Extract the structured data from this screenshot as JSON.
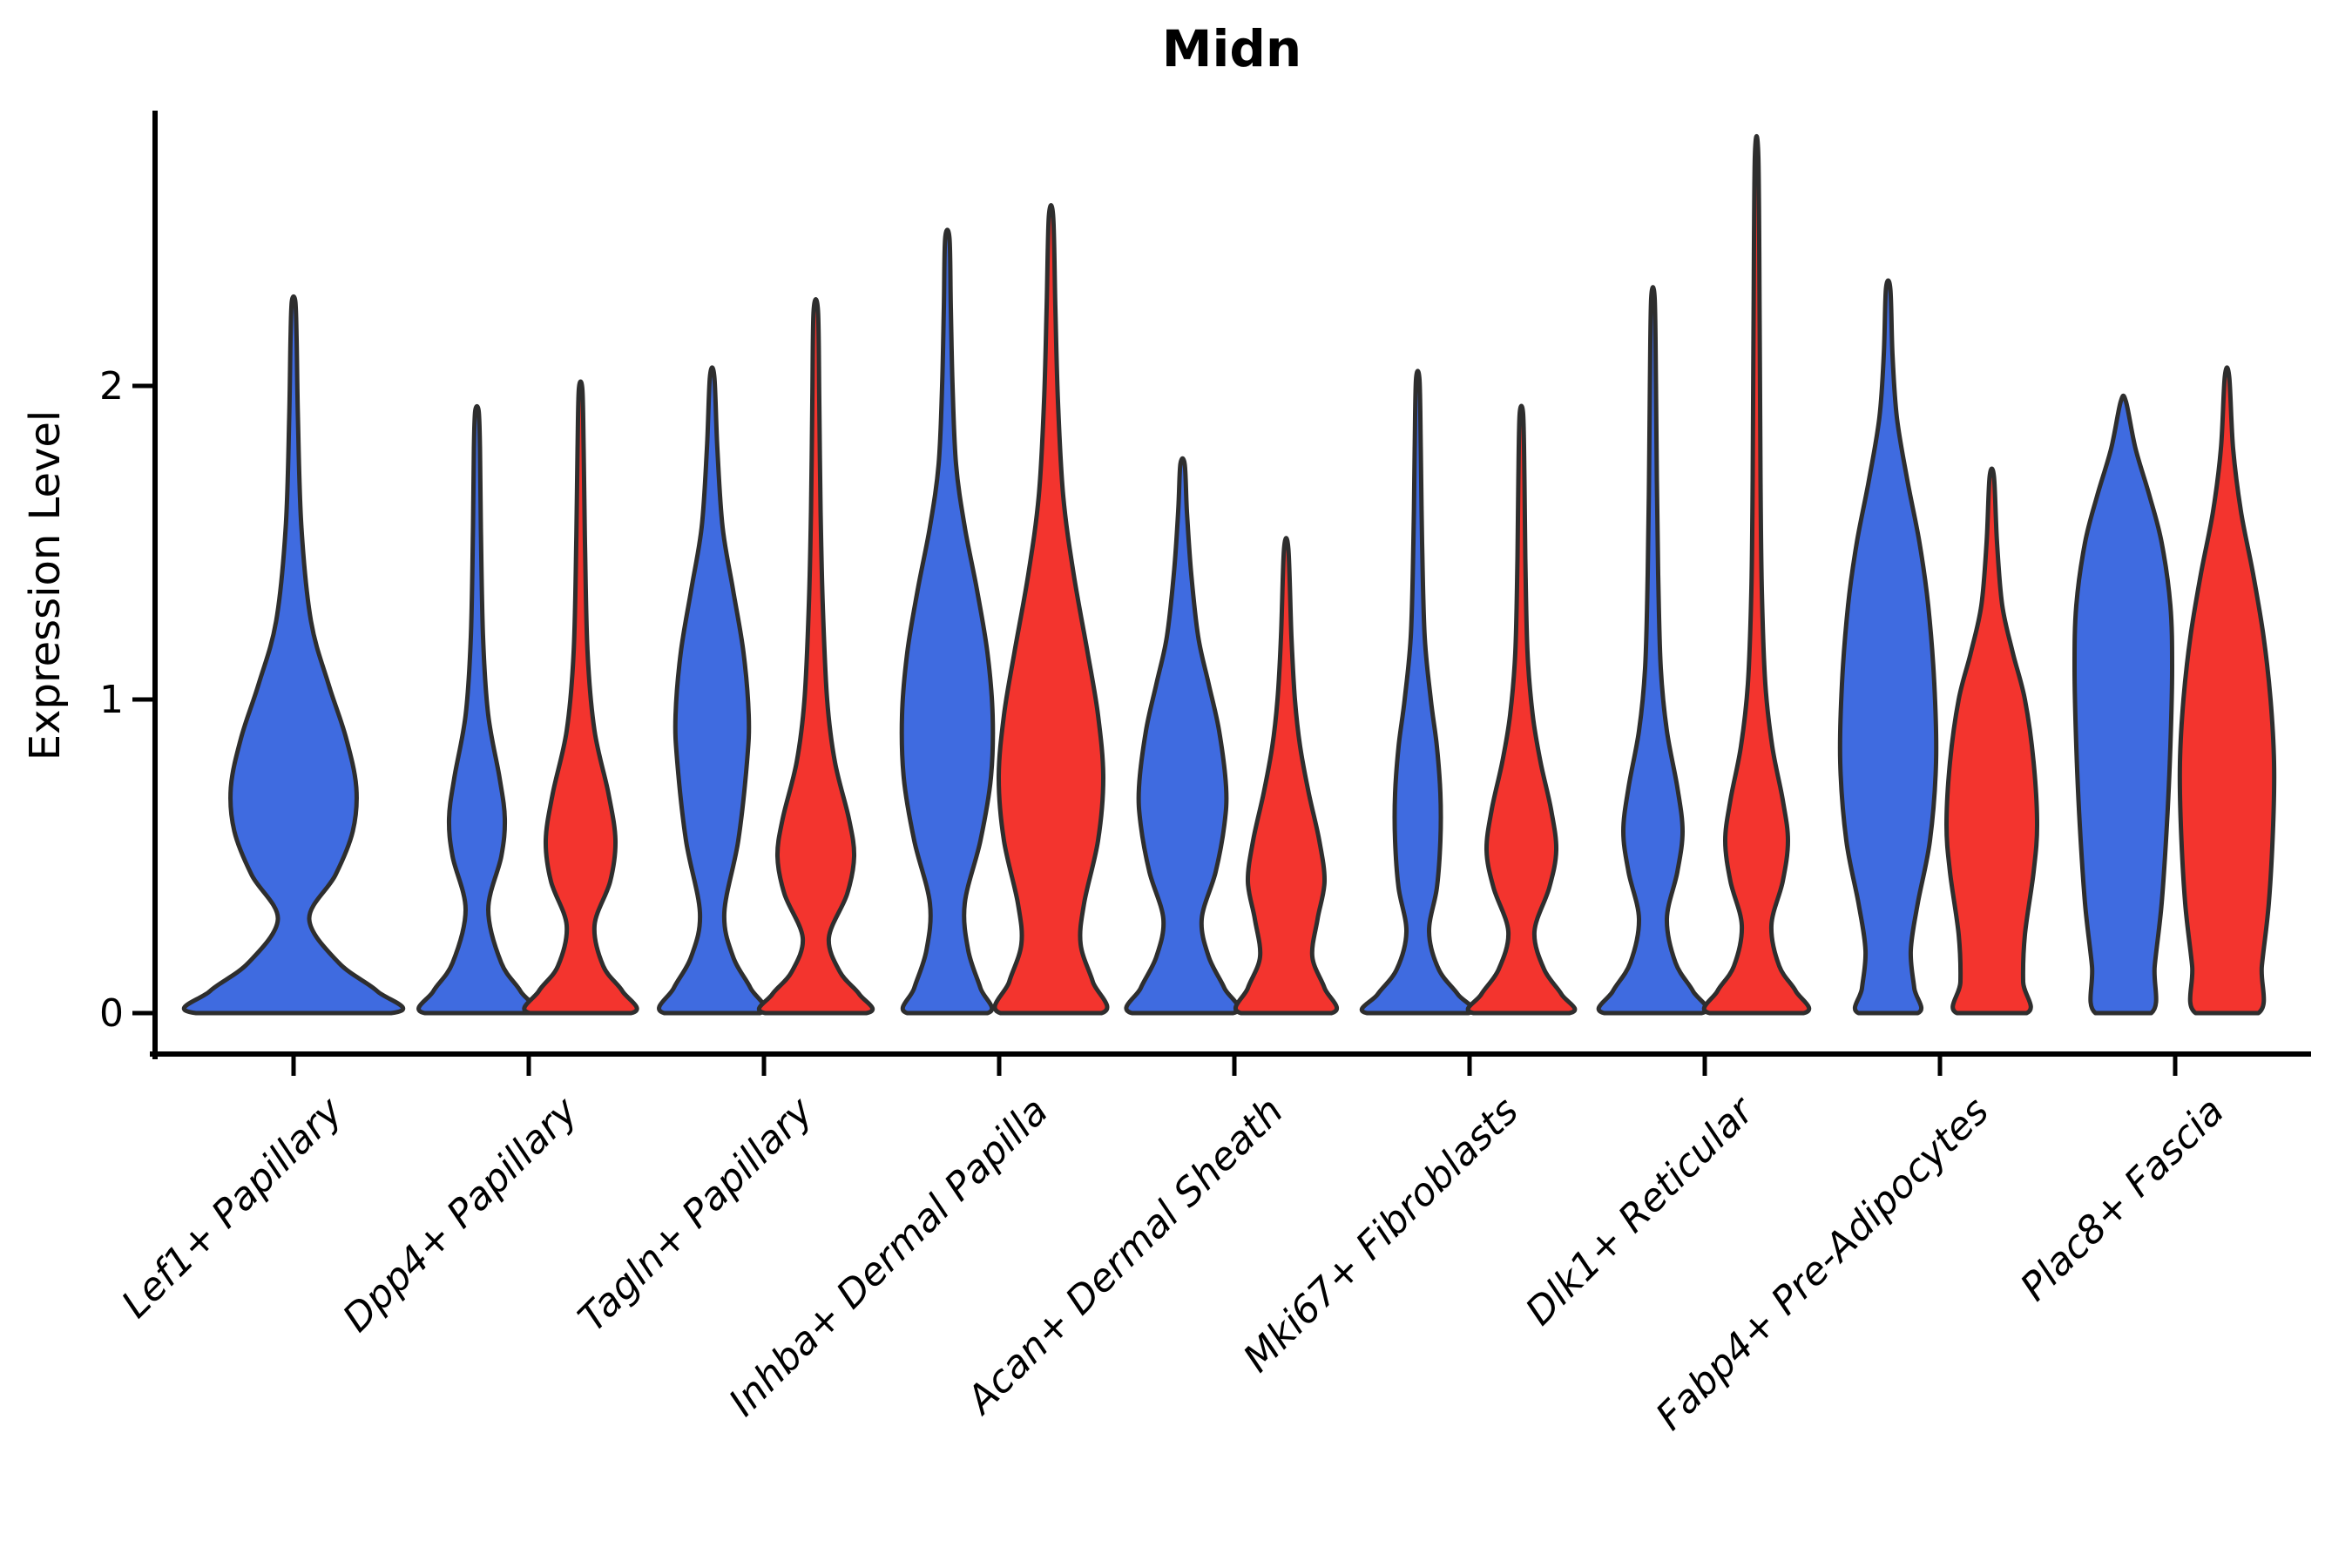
{
  "chart_data": {
    "type": "violin",
    "title": "Midn",
    "ylabel": "Expression Level",
    "xlabel": "",
    "ytick_labels": [
      "0",
      "1",
      "2"
    ],
    "yticks": [
      0,
      1,
      2
    ],
    "ylim": [
      0,
      2.9
    ],
    "grid": false,
    "legend": "none",
    "label_style": "italic, rotated 45 degrees",
    "outline_color": "#2e2e2e",
    "axis_color": "#000000",
    "groups": [
      {
        "id": "blue",
        "color": "#3f6be0"
      },
      {
        "id": "red",
        "color": "#f3342e"
      }
    ],
    "categories": [
      "Lef1+ Papillary",
      "Dpp4+ Papillary",
      "Tagln+ Papillary",
      "Inhba+ Dermal Papilla",
      "Acan+ Dermal Sheath",
      "Mki67+ Fibroblasts",
      "Dlk1+ Reticular",
      "Fabp4+ Pre-Adipocytes",
      "Plac8+ Fascia"
    ],
    "violins": [
      {
        "category_index": 0,
        "group": "blue",
        "position": "center",
        "peak": 2.27,
        "profile": [
          [
            0,
            112
          ],
          [
            0.07,
            96
          ],
          [
            0.16,
            52
          ],
          [
            0.3,
            18
          ],
          [
            0.44,
            48
          ],
          [
            0.58,
            68
          ],
          [
            0.72,
            72
          ],
          [
            0.88,
            60
          ],
          [
            1.05,
            40
          ],
          [
            1.25,
            20
          ],
          [
            1.55,
            9
          ],
          [
            1.9,
            5
          ],
          [
            2.15,
            3.5
          ],
          [
            2.27,
            2
          ]
        ]
      },
      {
        "category_index": 1,
        "group": "blue",
        "position": "left",
        "peak": 1.92,
        "profile": [
          [
            0,
            60
          ],
          [
            0.07,
            50
          ],
          [
            0.16,
            28
          ],
          [
            0.33,
            13
          ],
          [
            0.5,
            28
          ],
          [
            0.62,
            32
          ],
          [
            0.75,
            26
          ],
          [
            0.95,
            13
          ],
          [
            1.2,
            7
          ],
          [
            1.55,
            4.5
          ],
          [
            1.8,
            3.5
          ],
          [
            1.92,
            2
          ]
        ]
      },
      {
        "category_index": 1,
        "group": "red",
        "position": "right",
        "peak": 1.99,
        "profile": [
          [
            0,
            58
          ],
          [
            0.07,
            48
          ],
          [
            0.15,
            26
          ],
          [
            0.28,
            16
          ],
          [
            0.42,
            34
          ],
          [
            0.55,
            40
          ],
          [
            0.7,
            32
          ],
          [
            0.9,
            16
          ],
          [
            1.15,
            8
          ],
          [
            1.5,
            5
          ],
          [
            1.8,
            3.5
          ],
          [
            1.99,
            2
          ]
        ]
      },
      {
        "category_index": 2,
        "group": "blue",
        "position": "left",
        "peak": 2.03,
        "profile": [
          [
            0,
            55
          ],
          [
            0.08,
            44
          ],
          [
            0.18,
            24
          ],
          [
            0.32,
            14
          ],
          [
            0.55,
            30
          ],
          [
            0.8,
            40
          ],
          [
            0.95,
            42
          ],
          [
            1.15,
            36
          ],
          [
            1.35,
            24
          ],
          [
            1.55,
            12
          ],
          [
            1.8,
            6
          ],
          [
            2.03,
            2.5
          ]
        ]
      },
      {
        "category_index": 2,
        "group": "red",
        "position": "right",
        "peak": 2.24,
        "profile": [
          [
            0,
            58
          ],
          [
            0.06,
            50
          ],
          [
            0.13,
            28
          ],
          [
            0.24,
            15
          ],
          [
            0.38,
            36
          ],
          [
            0.5,
            44
          ],
          [
            0.62,
            38
          ],
          [
            0.8,
            22
          ],
          [
            1.0,
            13
          ],
          [
            1.3,
            8
          ],
          [
            1.6,
            5.5
          ],
          [
            1.95,
            4
          ],
          [
            2.24,
            2.5
          ]
        ]
      },
      {
        "category_index": 3,
        "group": "blue",
        "position": "left",
        "peak": 2.47,
        "profile": [
          [
            0,
            46
          ],
          [
            0.08,
            38
          ],
          [
            0.2,
            24
          ],
          [
            0.35,
            20
          ],
          [
            0.55,
            38
          ],
          [
            0.75,
            50
          ],
          [
            0.95,
            52
          ],
          [
            1.15,
            46
          ],
          [
            1.35,
            34
          ],
          [
            1.55,
            20
          ],
          [
            1.75,
            10
          ],
          [
            2.0,
            6
          ],
          [
            2.25,
            4
          ],
          [
            2.47,
            2.5
          ]
        ]
      },
      {
        "category_index": 3,
        "group": "red",
        "position": "right",
        "peak": 2.54,
        "profile": [
          [
            0,
            58
          ],
          [
            0.1,
            48
          ],
          [
            0.22,
            34
          ],
          [
            0.35,
            38
          ],
          [
            0.55,
            54
          ],
          [
            0.75,
            60
          ],
          [
            0.95,
            54
          ],
          [
            1.15,
            42
          ],
          [
            1.4,
            26
          ],
          [
            1.65,
            14
          ],
          [
            1.95,
            8
          ],
          [
            2.25,
            5
          ],
          [
            2.54,
            2.5
          ]
        ]
      },
      {
        "category_index": 4,
        "group": "blue",
        "position": "left",
        "peak": 1.75,
        "profile": [
          [
            0,
            58
          ],
          [
            0.08,
            48
          ],
          [
            0.18,
            30
          ],
          [
            0.3,
            22
          ],
          [
            0.45,
            38
          ],
          [
            0.6,
            48
          ],
          [
            0.72,
            50
          ],
          [
            0.9,
            42
          ],
          [
            1.05,
            30
          ],
          [
            1.2,
            18
          ],
          [
            1.4,
            10
          ],
          [
            1.6,
            5
          ],
          [
            1.75,
            2.5
          ]
        ]
      },
      {
        "category_index": 4,
        "group": "red",
        "position": "right",
        "peak": 1.48,
        "profile": [
          [
            0,
            52
          ],
          [
            0.08,
            44
          ],
          [
            0.18,
            30
          ],
          [
            0.3,
            36
          ],
          [
            0.42,
            44
          ],
          [
            0.55,
            38
          ],
          [
            0.7,
            26
          ],
          [
            0.85,
            16
          ],
          [
            1.0,
            10
          ],
          [
            1.2,
            6
          ],
          [
            1.48,
            2.5
          ]
        ]
      },
      {
        "category_index": 5,
        "group": "blue",
        "position": "left",
        "peak": 2.02,
        "profile": [
          [
            0,
            58
          ],
          [
            0.06,
            46
          ],
          [
            0.14,
            24
          ],
          [
            0.26,
            13
          ],
          [
            0.4,
            22
          ],
          [
            0.55,
            26
          ],
          [
            0.7,
            26
          ],
          [
            0.85,
            22
          ],
          [
            1.0,
            15
          ],
          [
            1.2,
            8
          ],
          [
            1.5,
            5
          ],
          [
            1.8,
            3.5
          ],
          [
            2.02,
            2
          ]
        ]
      },
      {
        "category_index": 5,
        "group": "red",
        "position": "right",
        "peak": 1.91,
        "profile": [
          [
            0,
            55
          ],
          [
            0.06,
            46
          ],
          [
            0.14,
            26
          ],
          [
            0.26,
            15
          ],
          [
            0.4,
            32
          ],
          [
            0.52,
            40
          ],
          [
            0.65,
            34
          ],
          [
            0.8,
            22
          ],
          [
            0.95,
            13
          ],
          [
            1.15,
            7
          ],
          [
            1.45,
            4.5
          ],
          [
            1.7,
            3.5
          ],
          [
            1.91,
            2
          ]
        ]
      },
      {
        "category_index": 6,
        "group": "blue",
        "position": "left",
        "peak": 2.28,
        "profile": [
          [
            0,
            56
          ],
          [
            0.07,
            46
          ],
          [
            0.16,
            26
          ],
          [
            0.3,
            16
          ],
          [
            0.45,
            28
          ],
          [
            0.58,
            34
          ],
          [
            0.72,
            28
          ],
          [
            0.9,
            16
          ],
          [
            1.1,
            9
          ],
          [
            1.4,
            6
          ],
          [
            1.7,
            4.5
          ],
          [
            2.0,
            3.5
          ],
          [
            2.28,
            2
          ]
        ]
      },
      {
        "category_index": 6,
        "group": "red",
        "position": "right",
        "peak": 2.73,
        "profile": [
          [
            0,
            54
          ],
          [
            0.07,
            45
          ],
          [
            0.15,
            26
          ],
          [
            0.28,
            17
          ],
          [
            0.42,
            30
          ],
          [
            0.55,
            36
          ],
          [
            0.68,
            30
          ],
          [
            0.85,
            18
          ],
          [
            1.05,
            10
          ],
          [
            1.35,
            6
          ],
          [
            1.7,
            4.5
          ],
          [
            2.2,
            3.5
          ],
          [
            2.73,
            2
          ]
        ]
      },
      {
        "category_index": 7,
        "group": "blue",
        "position": "left",
        "peak": 2.31,
        "profile": [
          [
            0,
            34
          ],
          [
            0.08,
            30
          ],
          [
            0.2,
            26
          ],
          [
            0.35,
            34
          ],
          [
            0.55,
            48
          ],
          [
            0.8,
            55
          ],
          [
            1.05,
            53
          ],
          [
            1.3,
            46
          ],
          [
            1.5,
            36
          ],
          [
            1.7,
            22
          ],
          [
            1.9,
            10
          ],
          [
            2.1,
            5
          ],
          [
            2.31,
            2.5
          ]
        ]
      },
      {
        "category_index": 7,
        "group": "red",
        "position": "right",
        "peak": 1.71,
        "profile": [
          [
            0,
            40
          ],
          [
            0.1,
            36
          ],
          [
            0.25,
            38
          ],
          [
            0.45,
            48
          ],
          [
            0.6,
            52
          ],
          [
            0.8,
            48
          ],
          [
            1.0,
            38
          ],
          [
            1.15,
            24
          ],
          [
            1.3,
            12
          ],
          [
            1.5,
            6
          ],
          [
            1.71,
            2.5
          ]
        ]
      },
      {
        "category_index": 8,
        "group": "blue",
        "position": "left",
        "peak": 1.95,
        "profile": [
          [
            0,
            32
          ],
          [
            0.15,
            36
          ],
          [
            0.35,
            44
          ],
          [
            0.6,
            50
          ],
          [
            0.85,
            54
          ],
          [
            1.1,
            56
          ],
          [
            1.3,
            54
          ],
          [
            1.5,
            44
          ],
          [
            1.65,
            30
          ],
          [
            1.8,
            14
          ],
          [
            1.95,
            3
          ]
        ]
      },
      {
        "category_index": 8,
        "group": "red",
        "position": "right",
        "peak": 2.03,
        "profile": [
          [
            0,
            36
          ],
          [
            0.15,
            40
          ],
          [
            0.35,
            48
          ],
          [
            0.6,
            53
          ],
          [
            0.8,
            54
          ],
          [
            1.0,
            50
          ],
          [
            1.2,
            42
          ],
          [
            1.4,
            30
          ],
          [
            1.6,
            16
          ],
          [
            1.8,
            7
          ],
          [
            2.03,
            2.5
          ]
        ]
      }
    ]
  }
}
